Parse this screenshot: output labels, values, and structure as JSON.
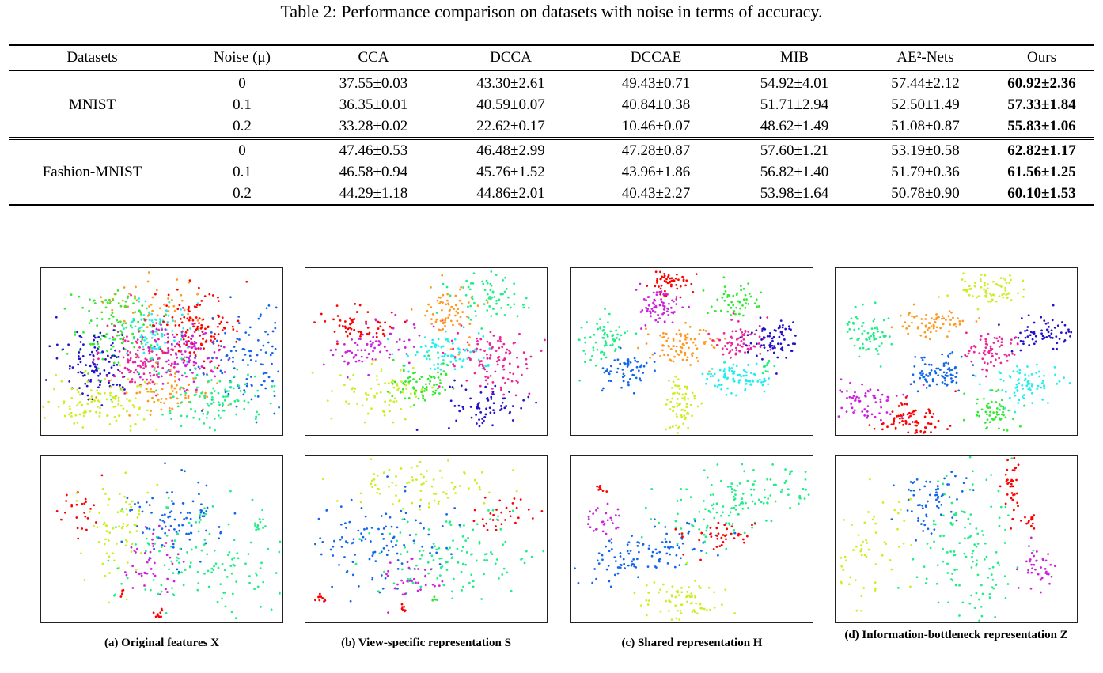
{
  "table": {
    "caption": "Table 2: Performance comparison on datasets with noise in terms of accuracy.",
    "headers": [
      "Datasets",
      "Noise (μ)",
      "CCA",
      "DCCA",
      "DCCAE",
      "MIB",
      "AE²-Nets",
      "Ours"
    ],
    "groups": [
      {
        "dataset": "MNIST",
        "rows": [
          {
            "noise": "0",
            "values": [
              "37.55±0.03",
              "43.30±2.61",
              "49.43±0.71",
              "54.92±4.01",
              "57.44±2.12",
              "60.92±2.36"
            ]
          },
          {
            "noise": "0.1",
            "values": [
              "36.35±0.01",
              "40.59±0.07",
              "40.84±0.38",
              "51.71±2.94",
              "52.50±1.49",
              "57.33±1.84"
            ]
          },
          {
            "noise": "0.2",
            "values": [
              "33.28±0.02",
              "22.62±0.17",
              "10.46±0.07",
              "48.62±1.49",
              "51.08±0.87",
              "55.83±1.06"
            ]
          }
        ]
      },
      {
        "dataset": "Fashion-MNIST",
        "rows": [
          {
            "noise": "0",
            "values": [
              "47.46±0.53",
              "46.48±2.99",
              "47.28±0.87",
              "57.60±1.21",
              "53.19±0.58",
              "62.82±1.17"
            ]
          },
          {
            "noise": "0.1",
            "values": [
              "46.58±0.94",
              "45.76±1.52",
              "43.96±1.86",
              "56.82±1.40",
              "51.79±0.36",
              "61.56±1.25"
            ]
          },
          {
            "noise": "0.2",
            "values": [
              "44.29±1.18",
              "44.86±2.01",
              "40.43±2.27",
              "53.98±1.64",
              "50.78±0.90",
              "60.10±1.53"
            ]
          }
        ]
      }
    ]
  },
  "figure": {
    "subcaptions": [
      "(a) Original features X",
      "(b) View-specific representation S",
      "(c) Shared representation H",
      "(d) Information-bottleneck representation Z"
    ],
    "cluster_colors": {
      "red": "#ff0000",
      "magenta": "#cc22dd",
      "green": "#33e833",
      "cyan": "#22eeee",
      "orange": "#ff9922",
      "pink": "#ee2299",
      "blue": "#1166ee",
      "navy": "#2211cc",
      "yellow": "#ccee22",
      "mint": "#22ee88"
    }
  }
}
